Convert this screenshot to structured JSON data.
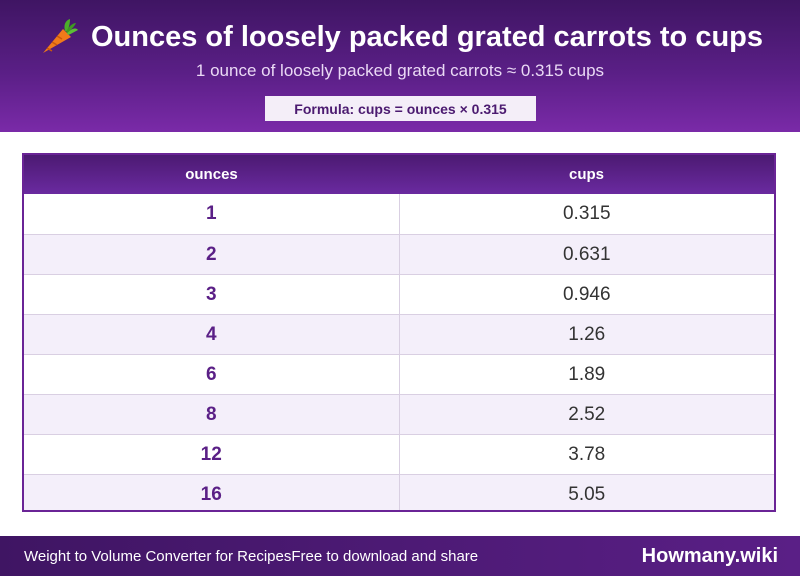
{
  "header": {
    "title": "Ounces of loosely packed grated carrots to cups",
    "subtitle": "1 ounce of loosely packed grated carrots ≈ 0.315 cups",
    "formula": "Formula: cups = ounces × 0.315",
    "icon": "carrot-icon"
  },
  "table": {
    "columns": [
      "ounces",
      "cups"
    ],
    "rows": [
      {
        "ounces": "1",
        "cups": "0.315"
      },
      {
        "ounces": "2",
        "cups": "0.631"
      },
      {
        "ounces": "3",
        "cups": "0.946"
      },
      {
        "ounces": "4",
        "cups": "1.26"
      },
      {
        "ounces": "6",
        "cups": "1.89"
      },
      {
        "ounces": "8",
        "cups": "2.52"
      },
      {
        "ounces": "12",
        "cups": "3.78"
      },
      {
        "ounces": "16",
        "cups": "5.05"
      }
    ]
  },
  "footer": {
    "left_a": "Weight to Volume Converter for Recipes",
    "left_b": "Free to download and share",
    "brand": "Howmany.wiki"
  },
  "colors": {
    "header_dark": "#3f1563",
    "header_light": "#7a2aa8",
    "accent": "#5a1f86",
    "row_alt": "#f4effa"
  }
}
